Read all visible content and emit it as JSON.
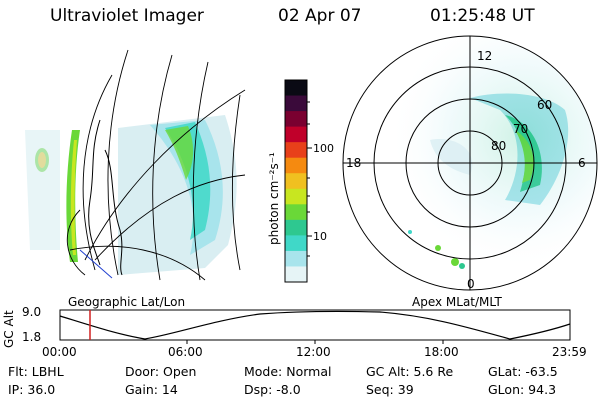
{
  "header": {
    "instrument": "Ultraviolet Imager",
    "date": "02 Apr 07",
    "time": "01:25:48 UT"
  },
  "colorbar": {
    "unit_label": "photon cm⁻²s⁻¹",
    "ticks": [
      "100",
      "10"
    ],
    "colors": [
      "#0a0a14",
      "#3a0a3a",
      "#7a0030",
      "#c0002a",
      "#e8401a",
      "#f58a10",
      "#f0c020",
      "#c8e620",
      "#6ad838",
      "#2ec890",
      "#40d8c8",
      "#a8e4ec",
      "#e6f4f6"
    ]
  },
  "geo_panel": {
    "caption": "Geographic Lat/Lon"
  },
  "polar_panel": {
    "caption": "Apex MLat/MLT",
    "mlt_labels": [
      "12",
      "18",
      "6",
      "0"
    ],
    "lat_labels": [
      "60",
      "70",
      "80"
    ]
  },
  "orbit_plot": {
    "ylabel": "GC Alt",
    "y_ticks": [
      "9.0",
      "1.8"
    ],
    "x_ticks": [
      "00:00",
      "06:00",
      "12:00",
      "18:00",
      "23:59"
    ],
    "marker_color": "#d02020"
  },
  "status": {
    "filter": "Flt: LBHL",
    "door": "Door: Open",
    "mode": "Mode: Normal",
    "gc_alt": "GC Alt: 5.6 Re",
    "glat": "GLat: -63.5",
    "ip": "IP: 36.0",
    "gain": "Gain: 14",
    "dsp": "Dsp:   -8.0",
    "seq": "Seq: 39",
    "glon": "GLon:  94.3"
  }
}
